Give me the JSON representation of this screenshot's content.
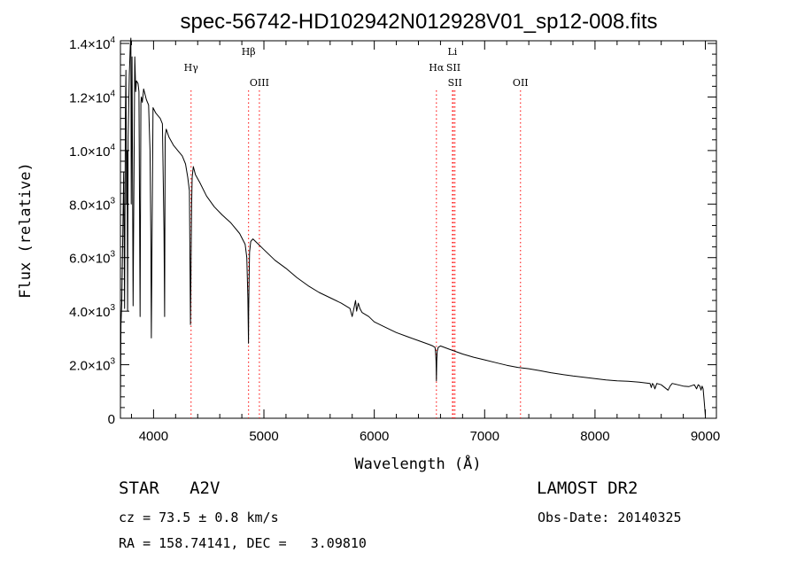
{
  "chart_data": {
    "type": "line",
    "title": "spec-56742-HD102942N012928V01_sp12-008.fits",
    "xlabel": "Wavelength (Å)",
    "ylabel": "Flux (relative)",
    "xlim": [
      3700,
      9100
    ],
    "ylim": [
      0,
      14100
    ],
    "x_ticks": [
      4000,
      5000,
      6000,
      7000,
      8000,
      9000
    ],
    "y_ticks": [
      {
        "value": 0,
        "mantissa": "0",
        "exp": ""
      },
      {
        "value": 2000,
        "mantissa": "2.0×10",
        "exp": "3"
      },
      {
        "value": 4000,
        "mantissa": "4.0×10",
        "exp": "3"
      },
      {
        "value": 6000,
        "mantissa": "6.0×10",
        "exp": "3"
      },
      {
        "value": 8000,
        "mantissa": "8.0×10",
        "exp": "3"
      },
      {
        "value": 10000,
        "mantissa": "1.0×10",
        "exp": "4"
      },
      {
        "value": 12000,
        "mantissa": "1.2×10",
        "exp": "4"
      },
      {
        "value": 14000,
        "mantissa": "1.4×10",
        "exp": "4"
      }
    ],
    "grid": false,
    "series": [
      {
        "name": "",
        "color": "#000000",
        "x": [
          3700,
          3705,
          3712,
          3720,
          3730,
          3738,
          3745,
          3750,
          3755,
          3760,
          3765,
          3770,
          3780,
          3790,
          3795,
          3798,
          3805,
          3815,
          3830,
          3835,
          3838,
          3845,
          3860,
          3868,
          3878,
          3885,
          3890,
          3898,
          3910,
          3935,
          3955,
          3968,
          3975,
          3980,
          3995,
          4020,
          4060,
          4080,
          4095,
          4100,
          4105,
          4115,
          4140,
          4180,
          4220,
          4260,
          4290,
          4310,
          4325,
          4330,
          4335,
          4340,
          4345,
          4350,
          4360,
          4380,
          4420,
          4480,
          4550,
          4620,
          4700,
          4780,
          4830,
          4845,
          4855,
          4860,
          4862,
          4865,
          4870,
          4880,
          4900,
          4950,
          5000,
          5100,
          5200,
          5300,
          5400,
          5500,
          5600,
          5700,
          5780,
          5800,
          5830,
          5840,
          5855,
          5870,
          5890,
          5950,
          6000,
          6100,
          6200,
          6300,
          6400,
          6500,
          6530,
          6550,
          6555,
          6560,
          6563,
          6566,
          6570,
          6580,
          6600,
          6700,
          6800,
          6900,
          7000,
          7100,
          7200,
          7300,
          7400,
          7500,
          7600,
          7700,
          7800,
          7900,
          8000,
          8100,
          8200,
          8300,
          8400,
          8498,
          8510,
          8520,
          8530,
          8542,
          8560,
          8600,
          8662,
          8680,
          8700,
          8750,
          8800,
          8850,
          8900,
          8920,
          8935,
          8950,
          8960,
          8970,
          8980,
          8990,
          9000
        ],
        "y": [
          400,
          3500,
          4300,
          6500,
          9200,
          4100,
          11400,
          13000,
          8000,
          10000,
          4000,
          10500,
          12800,
          14000,
          14200,
          8000,
          13500,
          4200,
          13500,
          12800,
          12200,
          12600,
          12500,
          12200,
          3800,
          11800,
          12000,
          11800,
          12300,
          11900,
          11700,
          10000,
          7000,
          3000,
          11600,
          11400,
          11200,
          11000,
          7000,
          3800,
          10500,
          10800,
          10500,
          10200,
          10000,
          9800,
          9500,
          9000,
          8500,
          6000,
          3500,
          6000,
          8000,
          9000,
          9400,
          9100,
          8800,
          8300,
          7900,
          7600,
          7300,
          6900,
          6500,
          6000,
          4500,
          2800,
          4000,
          5000,
          6200,
          6600,
          6700,
          6500,
          6300,
          5900,
          5600,
          5250,
          4950,
          4700,
          4500,
          4300,
          4100,
          3800,
          4400,
          4000,
          4300,
          4100,
          3950,
          3800,
          3600,
          3400,
          3200,
          3050,
          2900,
          2750,
          2700,
          2650,
          2500,
          2150,
          1400,
          2150,
          2500,
          2650,
          2700,
          2550,
          2400,
          2280,
          2180,
          2080,
          1980,
          1900,
          1850,
          1780,
          1700,
          1640,
          1580,
          1530,
          1480,
          1430,
          1400,
          1380,
          1350,
          1300,
          1150,
          1300,
          1250,
          1100,
          1300,
          1250,
          1050,
          1200,
          1300,
          1250,
          1200,
          1180,
          1250,
          1100,
          1250,
          1200,
          1050,
          1200,
          1100,
          600,
          100
        ]
      }
    ],
    "vlines": [
      {
        "x": 4340,
        "label": "Hγ",
        "label_row": 1
      },
      {
        "x": 4861,
        "label": "Hβ",
        "label_row": 0
      },
      {
        "x": 4959,
        "label": "OIII",
        "label_row": 2
      },
      {
        "x": 6563,
        "label": "Hα",
        "label_row": 1
      },
      {
        "x": 6708,
        "label": "Li",
        "label_row": 0
      },
      {
        "x": 6717,
        "label": "SII",
        "label_row": 1
      },
      {
        "x": 6731,
        "label": "SII",
        "label_row": 2
      },
      {
        "x": 7325,
        "label": "OII",
        "label_row": 2
      }
    ],
    "vline_color": "#ff0000"
  },
  "info": {
    "star_line": "STAR   A2V",
    "cz": "cz = 73.5 ± 0.8 km/s",
    "radec": "RA = 158.74141, DEC =   3.09810",
    "survey": "LAMOST DR2",
    "obs_date": "Obs-Date: 20140325"
  }
}
